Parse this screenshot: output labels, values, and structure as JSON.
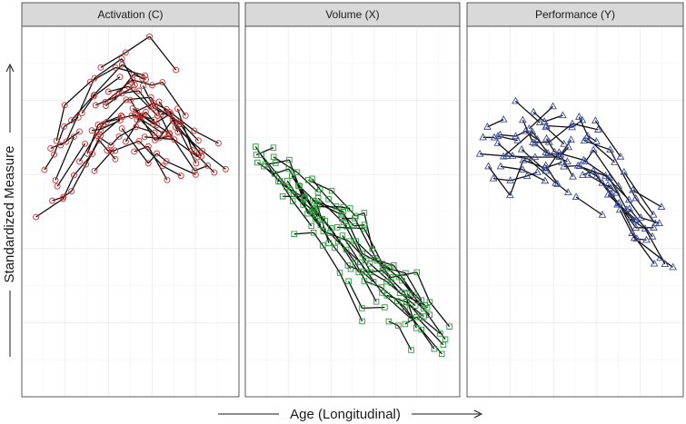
{
  "chart_data": {
    "type": "line",
    "description_free": true,
    "xlabel": "Age (Longitudinal)",
    "ylabel": "Standardized Measure",
    "grid": true,
    "xlim": [
      0,
      10
    ],
    "ylim": [
      -3.4,
      3.4
    ],
    "n_subjects": 40,
    "panels": [
      {
        "name": "Activation (C)",
        "color": "#d03030",
        "marker": "circle",
        "trend": [
          [
            0.0,
            0.2
          ],
          [
            1.0,
            0.6
          ],
          [
            2.0,
            1.1
          ],
          [
            3.0,
            1.6
          ],
          [
            4.0,
            1.95
          ],
          [
            5.0,
            2.05
          ],
          [
            6.0,
            1.95
          ],
          [
            7.0,
            1.7
          ],
          [
            8.0,
            1.3
          ],
          [
            9.0,
            0.9
          ],
          [
            10.0,
            0.4
          ]
        ],
        "spread": 0.45
      },
      {
        "name": "Volume (X)",
        "color": "#2a9a3a",
        "marker": "square",
        "trend": [
          [
            0.0,
            1.2
          ],
          [
            2.0,
            0.5
          ],
          [
            4.0,
            -0.2
          ],
          [
            6.0,
            -1.0
          ],
          [
            8.0,
            -1.7
          ],
          [
            10.0,
            -2.4
          ]
        ],
        "spread": 0.35
      },
      {
        "name": "Performance (Y)",
        "color": "#3a4a9a",
        "marker": "triangle",
        "trend": [
          [
            0.0,
            1.2
          ],
          [
            2.0,
            1.2
          ],
          [
            4.0,
            1.1
          ],
          [
            6.0,
            0.9
          ],
          [
            7.0,
            0.5
          ],
          [
            8.0,
            -0.2
          ],
          [
            10.0,
            -0.8
          ]
        ],
        "spread": 0.45
      }
    ]
  }
}
